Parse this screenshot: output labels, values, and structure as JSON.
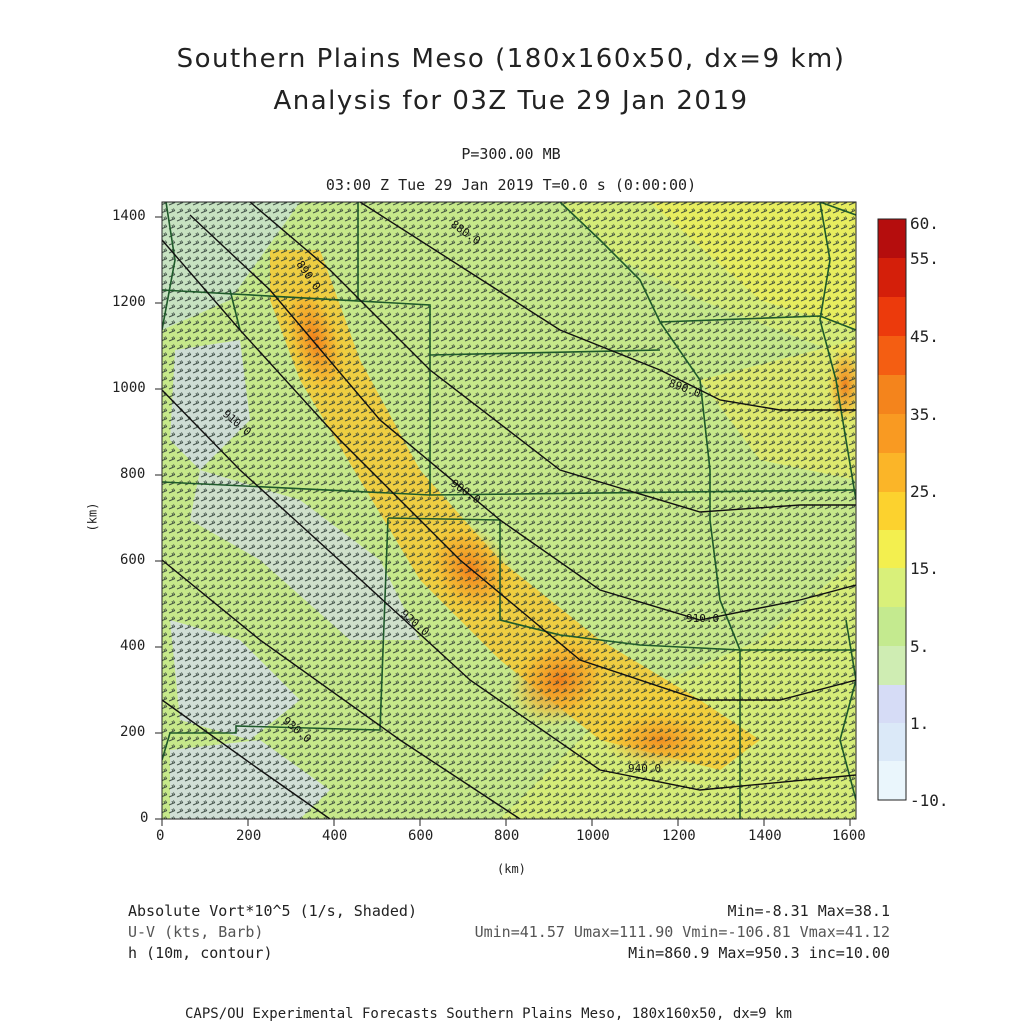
{
  "header": {
    "title_line1": "Southern Plains Meso (180x160x50, dx=9 km)",
    "title_line2": "Analysis for 03Z Tue 29 Jan 2019",
    "level": "P=300.00 MB",
    "valid_time": "03:00 Z Tue 29 Jan 2019    T=0.0 s (0:00:00)"
  },
  "axes": {
    "x_label": "(km)",
    "y_label": "(km)",
    "x_ticks": [
      "0",
      "200",
      "400",
      "600",
      "800",
      "1000",
      "1200",
      "1400",
      "1600"
    ],
    "y_ticks": [
      "0",
      "200",
      "400",
      "600",
      "800",
      "1000",
      "1200",
      "1400"
    ],
    "x_range": [
      0,
      1611
    ],
    "y_range": [
      0,
      1431
    ]
  },
  "colorbar": {
    "labels": [
      "60.",
      "55.",
      "45.",
      "35.",
      "25.",
      "15.",
      "5.",
      "1.",
      "-10."
    ],
    "colors": [
      "#b50d0d",
      "#d41f0a",
      "#ec3a0c",
      "#f45e12",
      "#f4841c",
      "#fbae26",
      "#fcd22e",
      "#f3ef4f",
      "#d9f07a",
      "#c4ea8f",
      "#d6dcf6",
      "#dbe9f8",
      "#eaf6fc"
    ]
  },
  "contours": {
    "labels": [
      "880.0",
      "890.0",
      "900.0",
      "910.0",
      "920.0",
      "930.0",
      "940.0"
    ],
    "color": "#111111"
  },
  "map": {
    "background_field": "Absolute vorticity (shaded)",
    "border_color": "#1f5a2a",
    "barb_color": "#2b3a33"
  },
  "footer": {
    "field1_name": "Absolute Vort*10^5 (1/s, Shaded)",
    "field1_stats": "Min=-8.31 Max=38.1",
    "field2_name": "U-V (kts, Barb)",
    "field2_stats": "Umin=41.57 Umax=111.90 Vmin=-106.81 Vmax=41.12",
    "field3_name": "h (10m, contour)",
    "field3_stats": "Min=860.9 Max=950.3 inc=10.00",
    "credit": "CAPS/OU Experimental Forecasts  Southern Plains Meso, 180x160x50, dx=9 km"
  }
}
